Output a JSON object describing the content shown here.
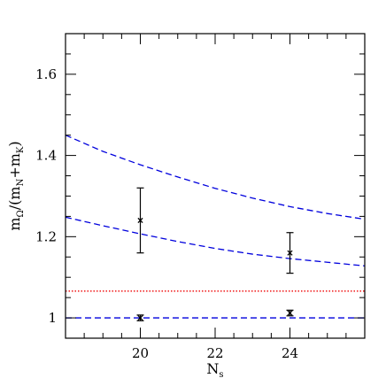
{
  "chart_data": {
    "type": "scatter",
    "title": "",
    "xlabel": {
      "main": "N",
      "sub": "s"
    },
    "ylabel": {
      "pre": "m",
      "pre_sub": "Ω",
      "mid": "/(m",
      "mid_sub": "N",
      "plus": "+m",
      "plus_sub": "K",
      "close": ")"
    },
    "xlim": [
      18,
      26
    ],
    "ylim": [
      0.95,
      1.7
    ],
    "x_major_ticks": [
      20,
      22,
      24
    ],
    "x_minor_step": 0.5,
    "x_tick_labels": [
      "20",
      "22",
      "24"
    ],
    "y_major_ticks": [
      1.0,
      1.2,
      1.4,
      1.6
    ],
    "y_minor_step": 0.05,
    "y_tick_labels": [
      "1",
      "1.2",
      "1.4",
      "1.6"
    ],
    "grid": false,
    "series": [
      {
        "marker": "x",
        "color": "#000000",
        "points": [
          {
            "x": 20,
            "y": 1.24,
            "ylow": 1.16,
            "yhigh": 1.32
          },
          {
            "x": 24,
            "y": 1.16,
            "ylow": 1.11,
            "yhigh": 1.21
          },
          {
            "x": 20,
            "y": 1.0,
            "ylow": 0.993,
            "yhigh": 1.007
          },
          {
            "x": 24,
            "y": 1.012,
            "ylow": 1.005,
            "yhigh": 1.019
          }
        ]
      }
    ],
    "curves": [
      {
        "style": "dashed",
        "color": "#0000dd",
        "x": [
          18,
          19,
          20,
          21,
          22,
          23,
          24,
          25,
          26
        ],
        "y": [
          1.45,
          1.41,
          1.377,
          1.347,
          1.319,
          1.295,
          1.274,
          1.257,
          1.243
        ]
      },
      {
        "style": "dashed",
        "color": "#0000dd",
        "x": [
          18,
          19,
          20,
          21,
          22,
          23,
          24,
          25,
          26
        ],
        "y": [
          1.248,
          1.227,
          1.207,
          1.188,
          1.171,
          1.157,
          1.146,
          1.137,
          1.128
        ]
      },
      {
        "style": "dashed",
        "color": "#0000dd",
        "x": [
          18,
          26
        ],
        "y": [
          1.0,
          1.0
        ]
      },
      {
        "style": "dotted",
        "color": "#ee0000",
        "x": [
          18,
          26
        ],
        "y": [
          1.066,
          1.066
        ]
      }
    ]
  }
}
